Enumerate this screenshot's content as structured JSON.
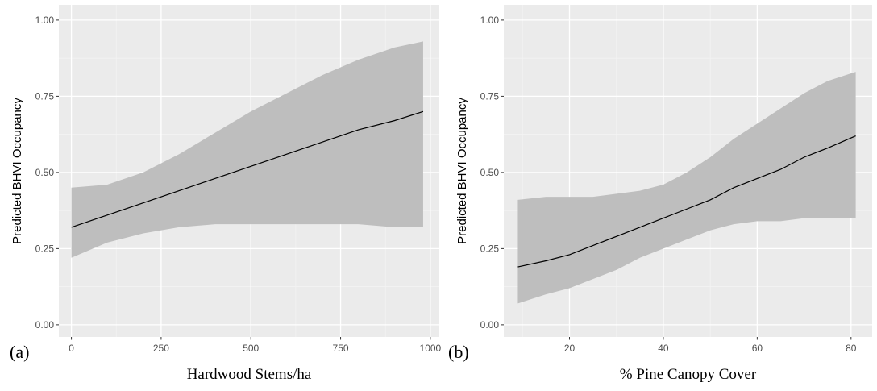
{
  "colors": {
    "panel_background": "#ebebeb",
    "grid_major": "#ffffff",
    "grid_minor": "#f4f4f4",
    "ribbon": "#bebebe",
    "line": "#000000",
    "tick_text": "#4d4d4d"
  },
  "chart_data": [
    {
      "type": "line",
      "panel_label": "(a)",
      "xlabel": "Hardwood Stems/ha",
      "ylabel": "Predicted BHVI Occupancy",
      "xlim": [
        -35,
        1025
      ],
      "ylim": [
        -0.04,
        1.05
      ],
      "xticks": [
        0,
        250,
        500,
        750,
        1000
      ],
      "xtick_labels": [
        "0",
        "250",
        "500",
        "750",
        "1000"
      ],
      "yticks": [
        0,
        0.25,
        0.5,
        0.75,
        1.0
      ],
      "ytick_labels": [
        "0.00",
        "0.25",
        "0.50",
        "0.75",
        "1.00"
      ],
      "grid": true,
      "series": [
        {
          "x": [
            0,
            100,
            200,
            300,
            400,
            500,
            600,
            700,
            800,
            900,
            980
          ],
          "values": [
            0.32,
            0.36,
            0.4,
            0.44,
            0.48,
            0.52,
            0.56,
            0.6,
            0.64,
            0.67,
            0.7
          ],
          "lower": [
            0.22,
            0.27,
            0.3,
            0.32,
            0.33,
            0.33,
            0.33,
            0.33,
            0.33,
            0.32,
            0.32
          ],
          "upper": [
            0.45,
            0.46,
            0.5,
            0.56,
            0.63,
            0.7,
            0.76,
            0.82,
            0.87,
            0.91,
            0.93
          ]
        }
      ]
    },
    {
      "type": "line",
      "panel_label": "(b)",
      "xlabel": "% Pine Canopy Cover",
      "ylabel": "Predicted BHVI Occupancy",
      "xlim": [
        6.0,
        84.5
      ],
      "ylim": [
        -0.04,
        1.05
      ],
      "xticks": [
        20,
        40,
        60,
        80
      ],
      "xtick_labels": [
        "20",
        "40",
        "60",
        "80"
      ],
      "yticks": [
        0,
        0.25,
        0.5,
        0.75,
        1.0
      ],
      "ytick_labels": [
        "0.00",
        "0.25",
        "0.50",
        "0.75",
        "1.00"
      ],
      "grid": true,
      "series": [
        {
          "x": [
            9,
            15,
            20,
            25,
            30,
            35,
            40,
            45,
            50,
            55,
            60,
            65,
            70,
            75,
            81
          ],
          "values": [
            0.19,
            0.21,
            0.23,
            0.26,
            0.29,
            0.32,
            0.35,
            0.38,
            0.41,
            0.45,
            0.48,
            0.51,
            0.55,
            0.58,
            0.62
          ],
          "lower": [
            0.07,
            0.1,
            0.12,
            0.15,
            0.18,
            0.22,
            0.25,
            0.28,
            0.31,
            0.33,
            0.34,
            0.34,
            0.35,
            0.35,
            0.35
          ],
          "upper": [
            0.41,
            0.42,
            0.42,
            0.42,
            0.43,
            0.44,
            0.46,
            0.5,
            0.55,
            0.61,
            0.66,
            0.71,
            0.76,
            0.8,
            0.83
          ]
        }
      ]
    }
  ]
}
